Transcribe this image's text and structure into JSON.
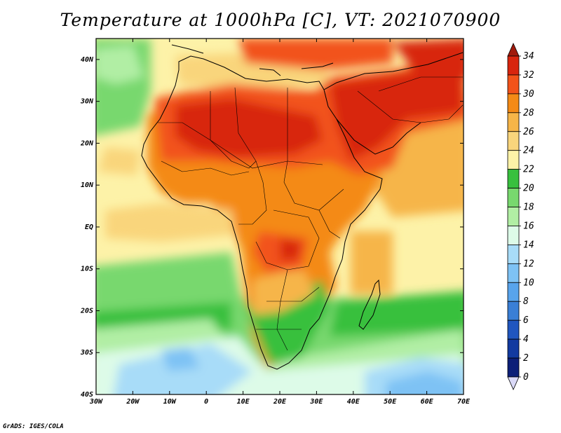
{
  "title": "Temperature at 1000hPa [C], VT: 2021070900",
  "credit": "GrADS: IGES/COLA",
  "map": {
    "variable": "Temperature at 1000hPa",
    "units": "C",
    "valid_time": "2021070900",
    "lon_ticks": [
      "30W",
      "20W",
      "10W",
      "0",
      "10E",
      "20E",
      "30E",
      "40E",
      "50E",
      "60E",
      "70E"
    ],
    "lat_ticks": [
      "40N",
      "30N",
      "20N",
      "10N",
      "EQ",
      "10S",
      "20S",
      "30S",
      "40S"
    ]
  },
  "colorbar": {
    "labels": [
      "34",
      "32",
      "30",
      "28",
      "26",
      "24",
      "22",
      "20",
      "18",
      "16",
      "14",
      "12",
      "10",
      "8",
      "6",
      "4",
      "2",
      "0"
    ],
    "colors": [
      "#a01a0c",
      "#d8250e",
      "#f2531a",
      "#f48a16",
      "#f6b548",
      "#f9d57c",
      "#fdf2a8",
      "#38c03e",
      "#78d86e",
      "#b1eea4",
      "#ddfbe8",
      "#a8dcf8",
      "#7ec2f4",
      "#58a4ec",
      "#3a7fd6",
      "#2056bf",
      "#123aa0",
      "#0c1f78",
      "#dad9f7"
    ]
  }
}
